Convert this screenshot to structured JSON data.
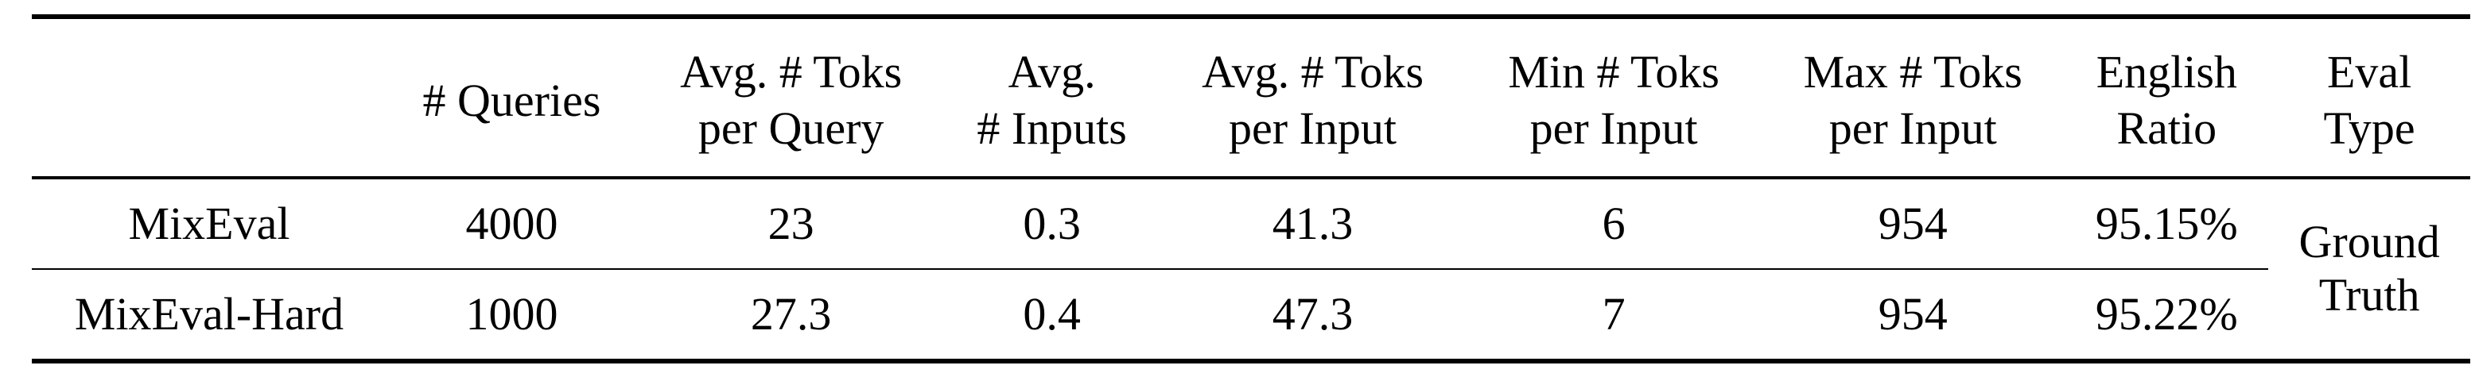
{
  "table": {
    "columns": [
      {
        "lines": [
          "",
          ""
        ]
      },
      {
        "lines": [
          "# Queries"
        ]
      },
      {
        "lines": [
          "Avg. # Toks",
          "per Query"
        ]
      },
      {
        "lines": [
          "Avg.",
          "# Inputs"
        ]
      },
      {
        "lines": [
          "Avg. # Toks",
          "per Input"
        ]
      },
      {
        "lines": [
          "Min # Toks",
          "per Input"
        ]
      },
      {
        "lines": [
          "Max # Toks",
          "per Input"
        ]
      },
      {
        "lines": [
          "English",
          "Ratio"
        ]
      },
      {
        "lines": [
          "Eval",
          "Type"
        ]
      }
    ],
    "rows": [
      {
        "name": "MixEval",
        "queries": "4000",
        "avg_toks_query": "23",
        "avg_inputs": "0.3",
        "avg_toks_input": "41.3",
        "min_toks_input": "6",
        "max_toks_input": "954",
        "english_ratio": "95.15%"
      },
      {
        "name": "MixEval-Hard",
        "queries": "1000",
        "avg_toks_query": "27.3",
        "avg_inputs": "0.4",
        "avg_toks_input": "47.3",
        "min_toks_input": "7",
        "max_toks_input": "954",
        "english_ratio": "95.22%"
      }
    ],
    "eval_type": [
      "Ground",
      "Truth"
    ]
  }
}
